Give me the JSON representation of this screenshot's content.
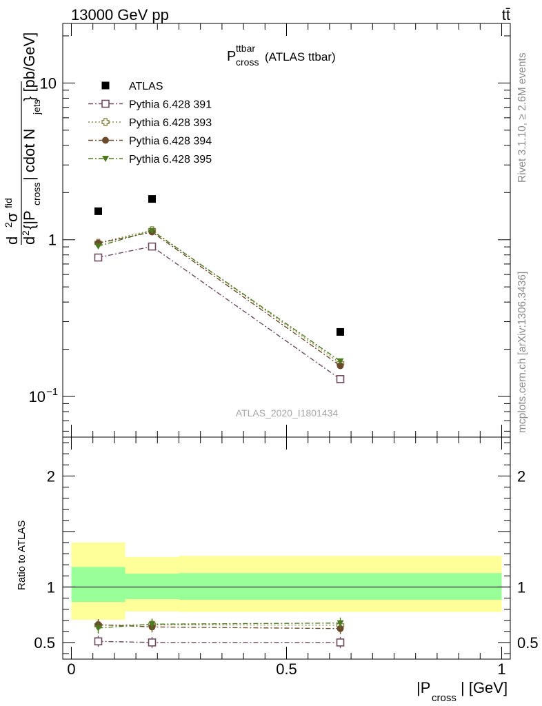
{
  "header": {
    "process": "13000 GeV pp",
    "final_state": "tt̄"
  },
  "chart_data": [
    {
      "type": "scatter",
      "title_main": "P",
      "title_sup": "ttbar",
      "title_sub": "cross",
      "title_suffix": "(ATLAS ttbar)",
      "ylabel_text": "d²σ^fid / d²{|P_cross| cdot N_jets} [pb/GeV]",
      "ylabel_parts": {
        "num_d": "d",
        "num_sup": "2",
        "num_sigma": "σ",
        "num_fid": "fid",
        "den_d": "d",
        "den_sup": "2",
        "den_body": "{|P",
        "den_sub1": "cross",
        "den_mid": "| cdot N",
        "den_sub2": "jets",
        "den_end": "} [pb/GeV]"
      },
      "y_log": true,
      "xlim": [
        -0.02,
        1.02
      ],
      "ylim": [
        0.055,
        24
      ],
      "y_ticks": [
        {
          "value": 10,
          "label": "10"
        },
        {
          "value": 1,
          "label": "1"
        },
        {
          "value": 0.1,
          "label": "10",
          "sup": "−1"
        }
      ],
      "legend_position": "top-left",
      "watermark": "ATLAS_2020_I1801434",
      "x": [
        0.0625,
        0.1875,
        0.625
      ],
      "x_bins": [
        [
          0.0,
          0.125
        ],
        [
          0.125,
          0.25
        ],
        [
          0.25,
          1.0
        ]
      ],
      "series": [
        {
          "name": "ATLAS",
          "color": "#000000",
          "marker": "filled-square",
          "line": "none",
          "values": [
            1.52,
            1.82,
            0.258
          ]
        },
        {
          "name": "Pythia 6.428 391",
          "color": "#6e4a5f",
          "marker": "open-square",
          "line": "dash-dot",
          "values": [
            0.77,
            0.905,
            0.129
          ]
        },
        {
          "name": "Pythia 6.428 393",
          "color": "#8a8a4a",
          "marker": "open-cross",
          "line": "dotted",
          "values": [
            0.955,
            1.15,
            0.163
          ]
        },
        {
          "name": "Pythia 6.428 394",
          "color": "#6b4a2b",
          "marker": "filled-circle",
          "line": "dash-dot",
          "values": [
            0.95,
            1.12,
            0.157
          ]
        },
        {
          "name": "Pythia 6.428 395",
          "color": "#4d7a1f",
          "marker": "filled-triangle-down",
          "line": "dash-dot",
          "values": [
            0.91,
            1.14,
            0.168
          ]
        }
      ]
    },
    {
      "type": "scatter",
      "ylabel": "Ratio to ATLAS",
      "xlabel_text": "|P_cross| [GeV]",
      "xlabel_parts": {
        "body": "|P",
        "sub": "cross",
        "end": "| [GeV]"
      },
      "xlim": [
        -0.02,
        1.02
      ],
      "ylim": [
        0.35,
        2.35
      ],
      "x_ticks": [
        {
          "value": 0,
          "label": "0"
        },
        {
          "value": 0.5,
          "label": "0.5"
        },
        {
          "value": 1,
          "label": "1"
        }
      ],
      "y_ticks": [
        {
          "value": 2,
          "label": "2"
        },
        {
          "value": 1,
          "label": "1"
        },
        {
          "value": 0.5,
          "label": "0.5"
        }
      ],
      "bands": [
        {
          "x0": 0.0,
          "x1": 0.125,
          "inner": [
            0.865,
            1.18
          ],
          "outer": [
            0.705,
            1.4
          ]
        },
        {
          "x0": 0.125,
          "x1": 0.25,
          "inner": [
            0.89,
            1.12
          ],
          "outer": [
            0.78,
            1.27
          ]
        },
        {
          "x0": 0.25,
          "x1": 1.0,
          "inner": [
            0.885,
            1.125
          ],
          "outer": [
            0.775,
            1.28
          ]
        }
      ],
      "band_colors": {
        "inner": "#99ff99",
        "outer": "#ffff99"
      },
      "x": [
        0.0625,
        0.1875,
        0.625
      ],
      "series": [
        {
          "name": "Pythia 6.428 391",
          "color": "#6e4a5f",
          "values": [
            0.51,
            0.5,
            0.5
          ]
        },
        {
          "name": "Pythia 6.428 393",
          "color": "#8a8a4a",
          "values": [
            0.655,
            0.66,
            0.655
          ]
        },
        {
          "name": "Pythia 6.428 394",
          "color": "#6b4a2b",
          "values": [
            0.66,
            0.64,
            0.625
          ]
        },
        {
          "name": "Pythia 6.428 395",
          "color": "#4d7a1f",
          "values": [
            0.63,
            0.665,
            0.675
          ]
        }
      ]
    }
  ],
  "side_labels": {
    "rivet": "Rivet 3.1.10, ≥ 2.6M events",
    "mcplots": "mcplots.cern.ch [arXiv:1306.3436]"
  }
}
